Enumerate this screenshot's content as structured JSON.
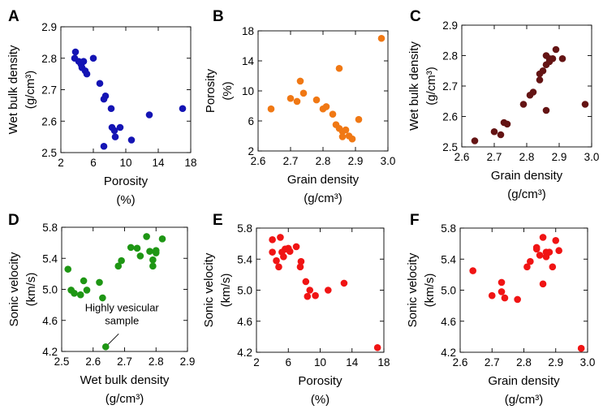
{
  "chart_data": [
    {
      "id": "A",
      "type": "scatter",
      "color": "#1414b4",
      "title": "",
      "xlabel": [
        "Porosity",
        "(%)"
      ],
      "ylabel": [
        "Wet bulk density",
        "(g/cm³)"
      ],
      "xlim": [
        2,
        18
      ],
      "ylim": [
        2.5,
        2.9
      ],
      "xticks": [
        2,
        6,
        10,
        14,
        18
      ],
      "xtick_labels": [
        "2",
        "6",
        "10",
        "14",
        "18"
      ],
      "yticks": [
        2.5,
        2.6,
        2.7,
        2.8,
        2.9
      ],
      "ytick_labels": [
        "2.5",
        "2.6",
        "2.7",
        "2.8",
        "2.9"
      ],
      "points": [
        [
          3.8,
          2.82
        ],
        [
          3.7,
          2.8
        ],
        [
          4.2,
          2.79
        ],
        [
          4.5,
          2.78
        ],
        [
          4.8,
          2.79
        ],
        [
          4.6,
          2.77
        ],
        [
          5.0,
          2.76
        ],
        [
          5.2,
          2.75
        ],
        [
          6.0,
          2.8
        ],
        [
          6.8,
          2.72
        ],
        [
          7.3,
          2.67
        ],
        [
          7.5,
          2.68
        ],
        [
          8.2,
          2.64
        ],
        [
          8.3,
          2.58
        ],
        [
          8.6,
          2.57
        ],
        [
          9.3,
          2.58
        ],
        [
          8.7,
          2.55
        ],
        [
          7.3,
          2.52
        ],
        [
          10.7,
          2.54
        ],
        [
          12.9,
          2.62
        ],
        [
          17.0,
          2.64
        ]
      ]
    },
    {
      "id": "B",
      "type": "scatter",
      "color": "#f07814",
      "title": "",
      "xlabel": [
        "Grain density",
        "(g/cm³)"
      ],
      "ylabel": [
        "Porosity",
        "(%)"
      ],
      "xlim": [
        2.6,
        3.0
      ],
      "ylim": [
        2,
        18
      ],
      "xticks": [
        2.6,
        2.7,
        2.8,
        2.9,
        3.0
      ],
      "xtick_labels": [
        "2.6",
        "2.7",
        "2.8",
        "2.9",
        "3.0"
      ],
      "yticks": [
        2,
        6,
        10,
        14,
        18
      ],
      "ytick_labels": [
        "2",
        "6",
        "10",
        "14",
        "18"
      ],
      "points": [
        [
          2.64,
          7.6
        ],
        [
          2.7,
          9.0
        ],
        [
          2.73,
          11.3
        ],
        [
          2.74,
          9.7
        ],
        [
          2.72,
          8.6
        ],
        [
          2.78,
          8.8
        ],
        [
          2.8,
          7.6
        ],
        [
          2.81,
          7.9
        ],
        [
          2.83,
          6.9
        ],
        [
          2.84,
          5.5
        ],
        [
          2.85,
          5.0
        ],
        [
          2.86,
          4.6
        ],
        [
          2.87,
          4.8
        ],
        [
          2.86,
          3.9
        ],
        [
          2.88,
          4.0
        ],
        [
          2.89,
          3.6
        ],
        [
          2.91,
          6.2
        ],
        [
          2.85,
          13.0
        ],
        [
          2.98,
          17.0
        ]
      ]
    },
    {
      "id": "C",
      "type": "scatter",
      "color": "#641414",
      "title": "",
      "xlabel": [
        "Grain density",
        "(g/cm³)"
      ],
      "ylabel": [
        "Wet bulk density",
        "(g/cm³)"
      ],
      "xlim": [
        2.6,
        3.0
      ],
      "ylim": [
        2.5,
        2.9
      ],
      "xticks": [
        2.6,
        2.7,
        2.8,
        2.9,
        3.0
      ],
      "xtick_labels": [
        "2.6",
        "2.7",
        "2.8",
        "2.9",
        "3.0"
      ],
      "yticks": [
        2.5,
        2.6,
        2.7,
        2.8,
        2.9
      ],
      "ytick_labels": [
        "2.5",
        "2.6",
        "2.7",
        "2.8",
        "2.9"
      ],
      "points": [
        [
          2.64,
          2.52
        ],
        [
          2.7,
          2.55
        ],
        [
          2.72,
          2.54
        ],
        [
          2.73,
          2.58
        ],
        [
          2.74,
          2.575
        ],
        [
          2.79,
          2.64
        ],
        [
          2.81,
          2.67
        ],
        [
          2.82,
          2.68
        ],
        [
          2.84,
          2.72
        ],
        [
          2.84,
          2.74
        ],
        [
          2.85,
          2.75
        ],
        [
          2.86,
          2.77
        ],
        [
          2.87,
          2.78
        ],
        [
          2.87,
          2.79
        ],
        [
          2.88,
          2.79
        ],
        [
          2.86,
          2.8
        ],
        [
          2.89,
          2.82
        ],
        [
          2.91,
          2.79
        ],
        [
          2.86,
          2.62
        ],
        [
          2.98,
          2.64
        ]
      ]
    },
    {
      "id": "D",
      "type": "scatter",
      "color": "#1e9614",
      "title": "",
      "xlabel": [
        "Wet bulk density",
        "(g/cm³)"
      ],
      "ylabel": [
        "Sonic velocity",
        "(km/s)"
      ],
      "xlim": [
        2.5,
        2.9
      ],
      "ylim": [
        4.2,
        5.8
      ],
      "xticks": [
        2.5,
        2.6,
        2.7,
        2.8,
        2.9
      ],
      "xtick_labels": [
        "2.5",
        "2.6",
        "2.7",
        "2.8",
        "2.9"
      ],
      "yticks": [
        4.2,
        4.6,
        5.0,
        5.4,
        5.8
      ],
      "ytick_labels": [
        "4.2",
        "4.6",
        "5.0",
        "5.4",
        "5.8"
      ],
      "points": [
        [
          2.52,
          5.26
        ],
        [
          2.53,
          4.99
        ],
        [
          2.54,
          4.95
        ],
        [
          2.56,
          4.93
        ],
        [
          2.57,
          5.11
        ],
        [
          2.58,
          4.99
        ],
        [
          2.62,
          5.09
        ],
        [
          2.63,
          4.89
        ],
        [
          2.64,
          4.26
        ],
        [
          2.68,
          5.3
        ],
        [
          2.69,
          5.37
        ],
        [
          2.72,
          5.54
        ],
        [
          2.74,
          5.53
        ],
        [
          2.75,
          5.43
        ],
        [
          2.77,
          5.68
        ],
        [
          2.78,
          5.49
        ],
        [
          2.79,
          5.3
        ],
        [
          2.79,
          5.38
        ],
        [
          2.8,
          5.5
        ],
        [
          2.8,
          5.47
        ],
        [
          2.82,
          5.65
        ]
      ]
    },
    {
      "id": "E",
      "type": "scatter",
      "color": "#f01414",
      "title": "",
      "xlabel": [
        "Porosity",
        "(%)"
      ],
      "ylabel": [
        "Sonic velocity",
        "(km/s)"
      ],
      "xlim": [
        2,
        18
      ],
      "ylim": [
        4.2,
        5.8
      ],
      "xticks": [
        2,
        6,
        10,
        14,
        18
      ],
      "xtick_labels": [
        "2",
        "6",
        "10",
        "14",
        "18"
      ],
      "yticks": [
        4.2,
        4.6,
        5.0,
        5.4,
        5.8
      ],
      "ytick_labels": [
        "4.2",
        "4.6",
        "5.0",
        "5.4",
        "5.8"
      ],
      "points": [
        [
          4.0,
          5.65
        ],
        [
          4.0,
          5.49
        ],
        [
          4.5,
          5.38
        ],
        [
          4.8,
          5.3
        ],
        [
          5.0,
          5.68
        ],
        [
          5.2,
          5.49
        ],
        [
          5.4,
          5.43
        ],
        [
          5.6,
          5.53
        ],
        [
          6.2,
          5.5
        ],
        [
          6.0,
          5.54
        ],
        [
          7.0,
          5.56
        ],
        [
          7.5,
          5.3
        ],
        [
          7.6,
          5.37
        ],
        [
          8.2,
          5.11
        ],
        [
          8.4,
          4.92
        ],
        [
          8.7,
          5.0
        ],
        [
          9.4,
          4.93
        ],
        [
          11.0,
          5.0
        ],
        [
          13.0,
          5.09
        ],
        [
          17.2,
          4.26
        ]
      ]
    },
    {
      "id": "F",
      "type": "scatter",
      "color": "#f01414",
      "title": "",
      "xlabel": [
        "Grain density",
        "(g/cm³)"
      ],
      "ylabel": [
        "Sonic velocity",
        "(km/s)"
      ],
      "xlim": [
        2.6,
        3.0
      ],
      "ylim": [
        4.2,
        5.8
      ],
      "xticks": [
        2.6,
        2.7,
        2.8,
        2.9,
        3.0
      ],
      "xtick_labels": [
        "2.6",
        "2.7",
        "2.8",
        "2.9",
        "3.0"
      ],
      "yticks": [
        4.2,
        4.6,
        5.0,
        5.4,
        5.8
      ],
      "ytick_labels": [
        "4.2",
        "4.6",
        "5.0",
        "5.4",
        "5.8"
      ],
      "points": [
        [
          2.64,
          5.25
        ],
        [
          2.7,
          4.93
        ],
        [
          2.73,
          5.1
        ],
        [
          2.73,
          4.98
        ],
        [
          2.74,
          4.9
        ],
        [
          2.78,
          4.88
        ],
        [
          2.81,
          5.3
        ],
        [
          2.82,
          5.37
        ],
        [
          2.84,
          5.55
        ],
        [
          2.84,
          5.53
        ],
        [
          2.85,
          5.45
        ],
        [
          2.86,
          5.68
        ],
        [
          2.86,
          5.08
        ],
        [
          2.87,
          5.43
        ],
        [
          2.87,
          5.49
        ],
        [
          2.88,
          5.49
        ],
        [
          2.89,
          5.3
        ],
        [
          2.9,
          5.64
        ],
        [
          2.91,
          5.51
        ],
        [
          2.98,
          4.25
        ]
      ]
    }
  ],
  "annotation": {
    "panel": "D",
    "text": [
      "Highly vesicular",
      "sample"
    ],
    "target": [
      2.64,
      4.26
    ]
  }
}
